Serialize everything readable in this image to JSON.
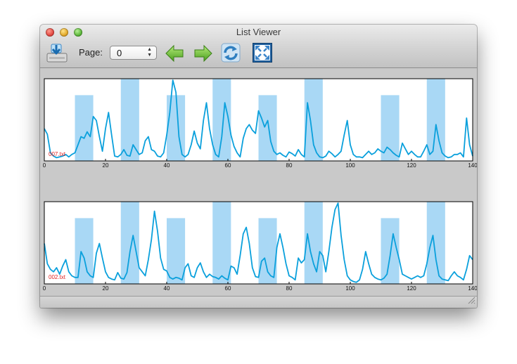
{
  "window": {
    "title": "List Viewer"
  },
  "toolbar": {
    "page_label": "Page:",
    "page_value": "0",
    "icons": [
      "save-drive-icon",
      "arrow-left-icon",
      "arrow-right-icon",
      "refresh-icon",
      "fullscreen-icon"
    ]
  },
  "colors": {
    "line": "#0aa0dc",
    "band": "#a9d8f5",
    "label": "#e02020"
  },
  "chart_data": [
    {
      "type": "line",
      "file_label": "007.txt",
      "xlim": [
        0,
        140
      ],
      "x_ticks": [
        0,
        20,
        40,
        60,
        80,
        100,
        120,
        140
      ],
      "bands": [
        {
          "x0": 10,
          "x1": 16,
          "level": 0.8
        },
        {
          "x0": 25,
          "x1": 31,
          "level": 1.0
        },
        {
          "x0": 40,
          "x1": 46,
          "level": 0.8
        },
        {
          "x0": 55,
          "x1": 61,
          "level": 1.0
        },
        {
          "x0": 70,
          "x1": 76,
          "level": 0.8
        },
        {
          "x0": 85,
          "x1": 91,
          "level": 1.0
        },
        {
          "x0": 110,
          "x1": 116,
          "level": 0.8
        },
        {
          "x0": 125,
          "x1": 131,
          "level": 1.0
        }
      ],
      "series": [
        {
          "x": [
            0,
            1,
            2,
            3,
            4,
            5,
            6,
            7,
            8,
            9,
            10,
            11,
            12,
            13,
            14,
            15,
            16,
            17,
            18,
            19,
            20,
            21,
            22,
            23,
            24,
            25,
            26,
            27,
            28,
            29,
            30,
            31,
            32,
            33,
            34,
            35,
            36,
            37,
            38,
            39,
            40,
            41,
            42,
            43,
            44,
            45,
            46,
            47,
            48,
            49,
            50,
            51,
            52,
            53,
            54,
            55,
            56,
            57,
            58,
            59,
            60,
            61,
            62,
            63,
            64,
            65,
            66,
            67,
            68,
            69,
            70,
            71,
            72,
            73,
            74,
            75,
            76,
            77,
            78,
            79,
            80,
            81,
            82,
            83,
            84,
            85,
            86,
            87,
            88,
            89,
            90,
            91,
            92,
            93,
            94,
            95,
            96,
            97,
            98,
            99,
            100,
            101,
            102,
            103,
            104,
            105,
            106,
            107,
            108,
            109,
            110,
            111,
            112,
            113,
            114,
            115,
            116,
            117,
            118,
            119,
            120,
            121,
            122,
            123,
            124,
            125,
            126,
            127,
            128,
            129,
            130,
            131,
            132,
            133,
            134,
            135,
            136,
            137,
            138,
            139,
            140
          ],
          "y": [
            0.4,
            0.33,
            0.1,
            0.06,
            0.04,
            0.05,
            0.06,
            0.08,
            0.05,
            0.08,
            0.1,
            0.2,
            0.3,
            0.28,
            0.36,
            0.3,
            0.55,
            0.5,
            0.3,
            0.12,
            0.4,
            0.6,
            0.32,
            0.06,
            0.05,
            0.08,
            0.14,
            0.07,
            0.06,
            0.2,
            0.14,
            0.08,
            0.1,
            0.25,
            0.3,
            0.14,
            0.12,
            0.06,
            0.05,
            0.1,
            0.32,
            0.6,
            1.0,
            0.85,
            0.3,
            0.08,
            0.05,
            0.08,
            0.2,
            0.37,
            0.22,
            0.15,
            0.5,
            0.72,
            0.4,
            0.2,
            0.08,
            0.05,
            0.3,
            0.72,
            0.55,
            0.32,
            0.18,
            0.1,
            0.05,
            0.28,
            0.4,
            0.45,
            0.38,
            0.34,
            0.62,
            0.53,
            0.42,
            0.5,
            0.24,
            0.12,
            0.08,
            0.1,
            0.07,
            0.05,
            0.11,
            0.09,
            0.06,
            0.14,
            0.08,
            0.05,
            0.72,
            0.5,
            0.2,
            0.1,
            0.05,
            0.04,
            0.06,
            0.12,
            0.09,
            0.05,
            0.08,
            0.12,
            0.32,
            0.5,
            0.2,
            0.08,
            0.05,
            0.05,
            0.04,
            0.08,
            0.12,
            0.08,
            0.1,
            0.15,
            0.12,
            0.1,
            0.17,
            0.14,
            0.1,
            0.07,
            0.05,
            0.22,
            0.15,
            0.08,
            0.12,
            0.08,
            0.05,
            0.05,
            0.12,
            0.2,
            0.08,
            0.12,
            0.45,
            0.25,
            0.1,
            0.06,
            0.04,
            0.05,
            0.08,
            0.08,
            0.1,
            0.05,
            0.53,
            0.2,
            0.06
          ]
        }
      ]
    },
    {
      "type": "line",
      "file_label": "002.txt",
      "xlim": [
        0,
        140
      ],
      "x_ticks": [
        0,
        20,
        40,
        60,
        80,
        100,
        120,
        140
      ],
      "bands": [
        {
          "x0": 10,
          "x1": 16,
          "level": 0.8
        },
        {
          "x0": 25,
          "x1": 31,
          "level": 1.0
        },
        {
          "x0": 40,
          "x1": 46,
          "level": 0.8
        },
        {
          "x0": 55,
          "x1": 61,
          "level": 1.0
        },
        {
          "x0": 70,
          "x1": 76,
          "level": 0.8
        },
        {
          "x0": 85,
          "x1": 91,
          "level": 1.0
        },
        {
          "x0": 110,
          "x1": 116,
          "level": 0.8
        },
        {
          "x0": 125,
          "x1": 131,
          "level": 1.0
        }
      ],
      "series": [
        {
          "x": [
            0,
            1,
            2,
            3,
            4,
            5,
            6,
            7,
            8,
            9,
            10,
            11,
            12,
            13,
            14,
            15,
            16,
            17,
            18,
            19,
            20,
            21,
            22,
            23,
            24,
            25,
            26,
            27,
            28,
            29,
            30,
            31,
            32,
            33,
            34,
            35,
            36,
            37,
            38,
            39,
            40,
            41,
            42,
            43,
            44,
            45,
            46,
            47,
            48,
            49,
            50,
            51,
            52,
            53,
            54,
            55,
            56,
            57,
            58,
            59,
            60,
            61,
            62,
            63,
            64,
            65,
            66,
            67,
            68,
            69,
            70,
            71,
            72,
            73,
            74,
            75,
            76,
            77,
            78,
            79,
            80,
            81,
            82,
            83,
            84,
            85,
            86,
            87,
            88,
            89,
            90,
            91,
            92,
            93,
            94,
            95,
            96,
            97,
            98,
            99,
            100,
            101,
            102,
            103,
            104,
            105,
            106,
            107,
            108,
            109,
            110,
            111,
            112,
            113,
            114,
            115,
            116,
            117,
            118,
            119,
            120,
            121,
            122,
            123,
            124,
            125,
            126,
            127,
            128,
            129,
            130,
            131,
            132,
            133,
            134,
            135,
            136,
            137,
            138,
            139,
            140
          ],
          "y": [
            0.5,
            0.25,
            0.18,
            0.15,
            0.2,
            0.12,
            0.22,
            0.3,
            0.15,
            0.1,
            0.08,
            0.08,
            0.4,
            0.32,
            0.15,
            0.1,
            0.08,
            0.38,
            0.5,
            0.32,
            0.15,
            0.08,
            0.06,
            0.05,
            0.14,
            0.07,
            0.06,
            0.14,
            0.4,
            0.6,
            0.4,
            0.2,
            0.15,
            0.1,
            0.3,
            0.55,
            0.9,
            0.65,
            0.32,
            0.18,
            0.16,
            0.08,
            0.06,
            0.08,
            0.07,
            0.05,
            0.2,
            0.25,
            0.1,
            0.08,
            0.2,
            0.26,
            0.15,
            0.08,
            0.12,
            0.09,
            0.08,
            0.06,
            0.1,
            0.07,
            0.05,
            0.22,
            0.2,
            0.12,
            0.35,
            0.62,
            0.7,
            0.5,
            0.2,
            0.09,
            0.08,
            0.28,
            0.32,
            0.15,
            0.1,
            0.08,
            0.45,
            0.62,
            0.45,
            0.25,
            0.1,
            0.08,
            0.05,
            0.32,
            0.26,
            0.3,
            0.62,
            0.4,
            0.25,
            0.15,
            0.4,
            0.35,
            0.15,
            0.4,
            0.7,
            0.92,
            1.0,
            0.6,
            0.3,
            0.1,
            0.05,
            0.03,
            0.02,
            0.05,
            0.18,
            0.4,
            0.25,
            0.12,
            0.08,
            0.06,
            0.05,
            0.07,
            0.12,
            0.35,
            0.62,
            0.45,
            0.3,
            0.12,
            0.1,
            0.08,
            0.06,
            0.08,
            0.1,
            0.08,
            0.1,
            0.25,
            0.45,
            0.6,
            0.3,
            0.1,
            0.06,
            0.05,
            0.04,
            0.1,
            0.15,
            0.1,
            0.08,
            0.05,
            0.18,
            0.35,
            0.3
          ]
        }
      ]
    }
  ]
}
